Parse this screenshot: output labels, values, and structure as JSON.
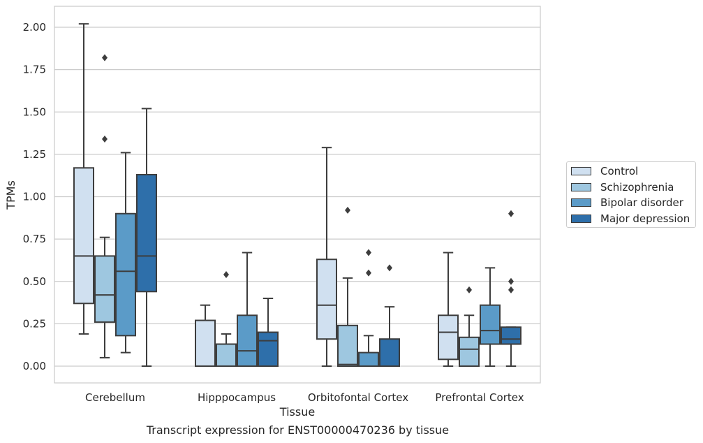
{
  "chart_data": {
    "type": "box",
    "xlabel": "Tissue",
    "ylabel": "TPMs",
    "caption": "Transcript expression for ENST00000470236 by tissue",
    "ylim": [
      -0.1,
      2.12
    ],
    "yticks": [
      "0.00",
      "0.25",
      "0.50",
      "0.75",
      "1.00",
      "1.25",
      "1.50",
      "1.75",
      "2.00"
    ],
    "grid": "horizontal",
    "legend_position": "right",
    "categories": [
      "Cerebellum",
      "Hipppocampus",
      "Orbitofontal Cortex",
      "Prefrontal Cortex"
    ],
    "series": [
      {
        "name": "Control",
        "color": "#d0e0f0",
        "boxes": [
          {
            "whislo": 0.19,
            "q1": 0.37,
            "med": 0.65,
            "q3": 1.17,
            "whishi": 2.02,
            "fliers": []
          },
          {
            "whislo": 0.0,
            "q1": 0.0,
            "med": 0.0,
            "q3": 0.27,
            "whishi": 0.36,
            "fliers": []
          },
          {
            "whislo": 0.0,
            "q1": 0.16,
            "med": 0.36,
            "q3": 0.63,
            "whishi": 1.29,
            "fliers": []
          },
          {
            "whislo": 0.0,
            "q1": 0.04,
            "med": 0.2,
            "q3": 0.3,
            "whishi": 0.67,
            "fliers": []
          }
        ]
      },
      {
        "name": "Schizophrenia",
        "color": "#9ec7e0",
        "boxes": [
          {
            "whislo": 0.05,
            "q1": 0.26,
            "med": 0.42,
            "q3": 0.65,
            "whishi": 0.76,
            "fliers": [
              1.34,
              1.82
            ]
          },
          {
            "whislo": 0.0,
            "q1": 0.0,
            "med": 0.0,
            "q3": 0.13,
            "whishi": 0.19,
            "fliers": [
              0.54
            ]
          },
          {
            "whislo": 0.0,
            "q1": 0.0,
            "med": 0.01,
            "q3": 0.24,
            "whishi": 0.52,
            "fliers": [
              0.92
            ]
          },
          {
            "whislo": 0.0,
            "q1": 0.0,
            "med": 0.1,
            "q3": 0.17,
            "whishi": 0.3,
            "fliers": [
              0.45
            ]
          }
        ]
      },
      {
        "name": "Bipolar disorder",
        "color": "#5b9bc8",
        "boxes": [
          {
            "whislo": 0.08,
            "q1": 0.18,
            "med": 0.56,
            "q3": 0.9,
            "whishi": 1.26,
            "fliers": []
          },
          {
            "whislo": 0.0,
            "q1": 0.0,
            "med": 0.09,
            "q3": 0.3,
            "whishi": 0.67,
            "fliers": []
          },
          {
            "whislo": 0.0,
            "q1": 0.0,
            "med": 0.0,
            "q3": 0.08,
            "whishi": 0.18,
            "fliers": [
              0.55,
              0.67
            ]
          },
          {
            "whislo": 0.0,
            "q1": 0.13,
            "med": 0.21,
            "q3": 0.36,
            "whishi": 0.58,
            "fliers": []
          }
        ]
      },
      {
        "name": "Major depression",
        "color": "#2e6faa",
        "boxes": [
          {
            "whislo": 0.0,
            "q1": 0.44,
            "med": 0.65,
            "q3": 1.13,
            "whishi": 1.52,
            "fliers": []
          },
          {
            "whislo": 0.0,
            "q1": 0.0,
            "med": 0.15,
            "q3": 0.2,
            "whishi": 0.4,
            "fliers": []
          },
          {
            "whislo": 0.0,
            "q1": 0.0,
            "med": 0.0,
            "q3": 0.16,
            "whishi": 0.35,
            "fliers": [
              0.58
            ]
          },
          {
            "whislo": 0.0,
            "q1": 0.13,
            "med": 0.16,
            "q3": 0.23,
            "whishi": 0.23,
            "fliers": [
              0.45,
              0.5,
              0.9
            ]
          }
        ]
      }
    ]
  }
}
